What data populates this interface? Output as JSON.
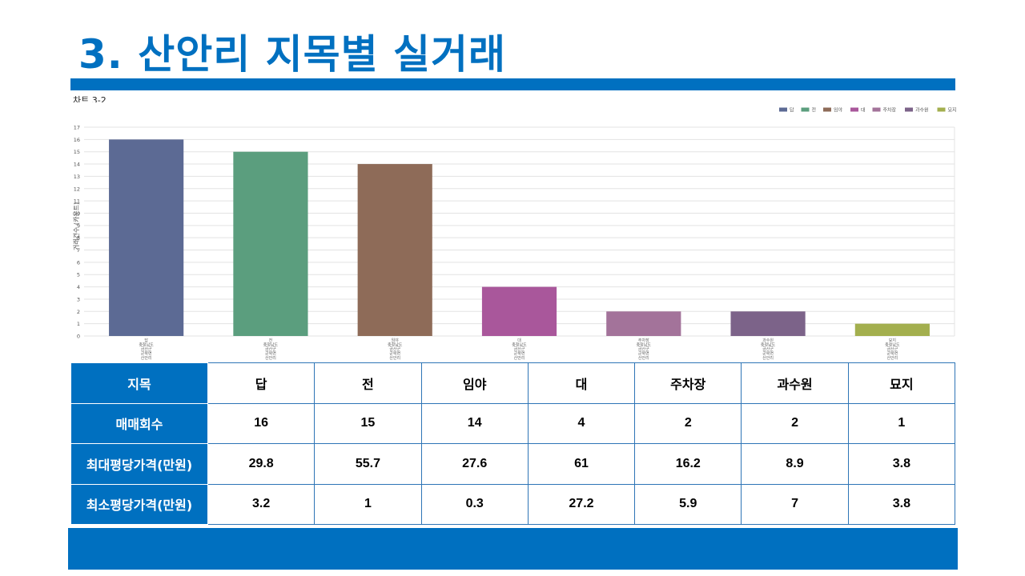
{
  "page": {
    "title": "3. 산안리 지목별 실거래"
  },
  "chart_label": "차트 3-2",
  "chart_data": {
    "type": "bar",
    "title": "",
    "xlabel": "",
    "ylabel": "거래건수 (카운트)",
    "ylim": [
      0,
      17
    ],
    "yticks": [
      0,
      1,
      2,
      3,
      4,
      5,
      6,
      7,
      8,
      9,
      10,
      11,
      12,
      13,
      14,
      15,
      16,
      17
    ],
    "grid": true,
    "legend_position": "top-right",
    "categories": [
      "답",
      "전",
      "임야",
      "대",
      "주차장",
      "과수원",
      "묘지"
    ],
    "values": [
      16,
      15,
      14,
      4,
      2,
      2,
      1
    ],
    "colors": [
      "#5c6a94",
      "#5b9e7e",
      "#8e6b58",
      "#a9579b",
      "#a3739a",
      "#7c6389",
      "#a3af4e"
    ],
    "legend": [
      "답",
      "전",
      "임야",
      "대",
      "주차장",
      "과수원",
      "묘지"
    ],
    "xtick_lines": [
      [
        "답",
        "충청남도",
        "금산군",
        "군북면",
        "산안리"
      ],
      [
        "전",
        "충청남도",
        "금산군",
        "군북면",
        "산안리"
      ],
      [
        "임야",
        "충청남도",
        "금산군",
        "군북면",
        "산안리"
      ],
      [
        "대",
        "충청남도",
        "금산군",
        "군북면",
        "산안리"
      ],
      [
        "주차장",
        "충청남도",
        "금산군",
        "군북면",
        "산안리"
      ],
      [
        "과수원",
        "충청남도",
        "금산군",
        "군북면",
        "산안리"
      ],
      [
        "묘지",
        "충청남도",
        "금산군",
        "군북면",
        "산안리"
      ]
    ]
  },
  "table": {
    "row_labels": [
      "지목",
      "매매회수",
      "최대평당가격(만원)",
      "최소평당가격(만원)"
    ],
    "header": [
      "답",
      "전",
      "임야",
      "대",
      "주차장",
      "과수원",
      "묘지"
    ],
    "counts": [
      "16",
      "15",
      "14",
      "4",
      "2",
      "2",
      "1"
    ],
    "max_price": [
      "29.8",
      "55.7",
      "27.6",
      "61",
      "16.2",
      "8.9",
      "3.8"
    ],
    "min_price": [
      "3.2",
      "1",
      "0.3",
      "27.2",
      "5.9",
      "7",
      "3.8"
    ]
  },
  "colors": {
    "accent": "#0070c0",
    "table_border": "#2e75b6"
  }
}
